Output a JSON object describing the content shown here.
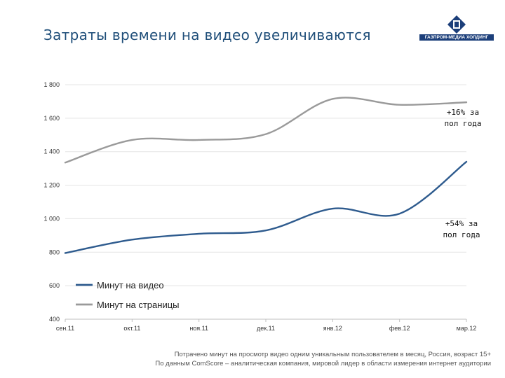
{
  "slide": {
    "title": "Затраты времени на видео увеличиваются",
    "logo_text": "ГАЗПРОМ-МЕДИА ХОЛДИНГ",
    "footnote_line1": "Потрачено минут на просмотр видео одним уникальным пользователем в месяц, Россия, возраст 15+",
    "footnote_line2": "По данным ComScore – аналитическая компания, мировой лидер в области измерения интернет аудитории"
  },
  "colors": {
    "title": "#1f4e79",
    "video_series": "#2e5b8e",
    "pages_series": "#9a9a9a",
    "logo": "#1c3f7a"
  },
  "chart_data": {
    "type": "line",
    "categories": [
      "сен.11",
      "окт.11",
      "ноя.11",
      "дек.11",
      "янв.12",
      "фев.12",
      "мар.12"
    ],
    "y_ticks": [
      "400",
      "600",
      "800",
      "1 000",
      "1 200",
      "1 400",
      "1 600",
      "1 800"
    ],
    "ylim": [
      400,
      1800
    ],
    "grid": true,
    "legend_position": "bottom-left",
    "series": [
      {
        "name": "Минут на видео",
        "color": "#2e5b8e",
        "values": [
          795,
          875,
          910,
          930,
          1060,
          1030,
          1340
        ]
      },
      {
        "name": "Минут на страницы",
        "color": "#9a9a9a",
        "values": [
          1335,
          1470,
          1470,
          1505,
          1715,
          1680,
          1695
        ]
      }
    ],
    "annotations": [
      {
        "series": 1,
        "line1": "+16% за",
        "line2": "пол года"
      },
      {
        "series": 0,
        "line1": "+54% за",
        "line2": "пол года"
      }
    ]
  }
}
